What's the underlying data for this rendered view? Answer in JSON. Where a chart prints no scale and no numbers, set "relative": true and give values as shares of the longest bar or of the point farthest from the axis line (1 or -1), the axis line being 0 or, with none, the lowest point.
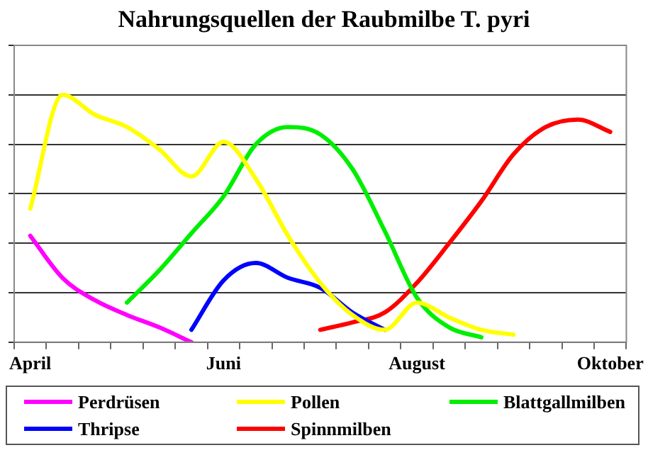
{
  "chart_data": {
    "type": "line",
    "title": "Nahrungsquellen der Raubmilbe T. pyri",
    "relative": true,
    "grid": "y",
    "legend": "bottom",
    "marker": "none",
    "line_style": "solid",
    "categories": [
      "April",
      null,
      null,
      null,
      null,
      null,
      "Juni",
      null,
      null,
      null,
      null,
      null,
      "August",
      null,
      null,
      null,
      null,
      null,
      "Oktober"
    ],
    "series": [
      {
        "name": "Perdrüsen",
        "color": "#ff00ff",
        "values": [
          0.43,
          0.26,
          0.17,
          0.11,
          0.06,
          0,
          null,
          null,
          null,
          null,
          null,
          null,
          null,
          null,
          null,
          null,
          null,
          null,
          null
        ]
      },
      {
        "name": "Pollen",
        "color": "#ffff00",
        "values": [
          0.54,
          1,
          0.92,
          0.87,
          0.78,
          0.67,
          0.81,
          0.66,
          0.43,
          0.24,
          0.11,
          0.05,
          0.16,
          0.1,
          0.05,
          0.03,
          null,
          null,
          null
        ]
      },
      {
        "name": "Blattgallmilben",
        "color": "#00ee00",
        "values": [
          null,
          null,
          null,
          0.16,
          0.29,
          0.44,
          0.59,
          0.8,
          0.87,
          0.84,
          0.7,
          0.45,
          0.18,
          0.06,
          0.02,
          null,
          null,
          null,
          null
        ]
      },
      {
        "name": "Thripse",
        "color": "#0000ff",
        "values": [
          null,
          null,
          null,
          null,
          null,
          0.05,
          0.25,
          0.32,
          0.26,
          0.22,
          0.12,
          0.05,
          null,
          null,
          null,
          null,
          null,
          null,
          null
        ]
      },
      {
        "name": "Spinnmilben",
        "color": "#ff0000",
        "values": [
          null,
          null,
          null,
          null,
          null,
          null,
          null,
          null,
          null,
          0.05,
          0.08,
          0.12,
          0.24,
          0.4,
          0.57,
          0.76,
          0.87,
          0.9,
          0.85
        ]
      }
    ]
  }
}
